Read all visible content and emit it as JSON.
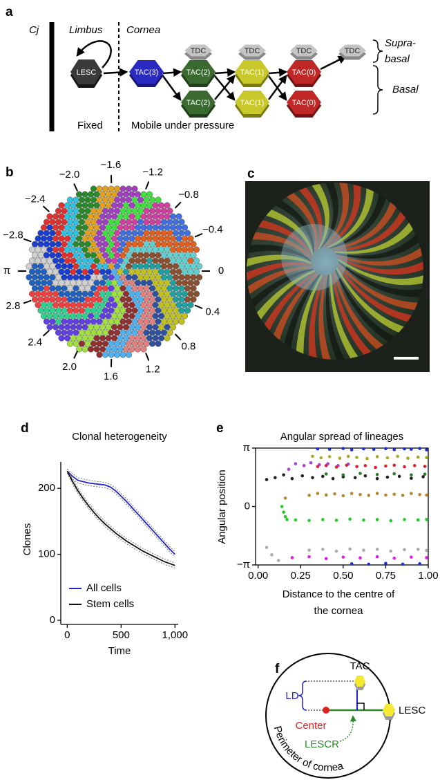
{
  "panel_labels": [
    "a",
    "b",
    "c",
    "d",
    "e",
    "f"
  ],
  "diagram_a": {
    "cj": "Cj",
    "limbus": "Limbus",
    "cornea": "Cornea",
    "lesc": "LESC",
    "tac": [
      "TAC(3)",
      "TAC(2)",
      "TAC(2)",
      "TAC(1)",
      "TAC(1)",
      "TAC(0)",
      "TAC(0)"
    ],
    "tdc": [
      "TDC",
      "TDC",
      "TDC",
      "TDC"
    ],
    "suprabasal": [
      "Supra-",
      "basal"
    ],
    "basal": "Basal",
    "fixed": "Fixed",
    "mobile": "Mobile under pressure"
  },
  "angle_plot_b": {
    "ticks": [
      {
        "value": -2.8,
        "label": "−2.8"
      },
      {
        "value": -2.4,
        "label": "−2.4"
      },
      {
        "value": -2.0,
        "label": "−2.0"
      },
      {
        "value": -1.6,
        "label": "−1.6"
      },
      {
        "value": -1.2,
        "label": "−1.2"
      },
      {
        "value": -0.8,
        "label": "−0.8"
      },
      {
        "value": -0.4,
        "label": "−0.4"
      },
      0,
      0.4,
      0.8,
      1.2,
      1.6,
      {
        "value": 2.0,
        "label": "2.0"
      },
      2.4,
      2.8,
      {
        "value": 3.14159,
        "label": "π"
      }
    ]
  },
  "chart_data": [
    {
      "type": "line",
      "title": "Clonal heterogeneity",
      "xlabel": "Time",
      "ylabel": "Clones",
      "x": [
        0,
        50,
        100,
        150,
        200,
        250,
        300,
        350,
        400,
        450,
        500,
        550,
        600,
        650,
        700,
        750,
        800,
        850,
        900,
        950,
        1000
      ],
      "xlim": [
        -60,
        1030
      ],
      "ylim": [
        0,
        240
      ],
      "xticks": [
        0,
        500,
        {
          "value": 1000,
          "label": "1,000"
        }
      ],
      "yticks": [
        0,
        100,
        200
      ],
      "legend": "lower left",
      "series": [
        {
          "name": "All cells",
          "color": "#2222cc",
          "values": [
            226,
            218,
            212,
            210,
            208,
            207,
            206,
            205,
            202,
            196,
            188,
            180,
            171,
            162,
            153,
            144,
            135,
            126,
            117,
            108,
            100
          ],
          "lower": [
            223,
            214,
            208,
            206,
            204,
            203,
            202,
            201,
            198,
            192,
            184,
            176,
            167,
            158,
            149,
            140,
            131,
            122,
            113,
            104,
            96
          ],
          "upper": [
            229,
            222,
            216,
            214,
            212,
            211,
            210,
            209,
            206,
            200,
            192,
            184,
            175,
            166,
            157,
            148,
            139,
            130,
            121,
            112,
            104
          ]
        },
        {
          "name": "Stem cells",
          "color": "#111111",
          "values": [
            226,
            210,
            196,
            184,
            173,
            163,
            154,
            146,
            139,
            132,
            126,
            120,
            115,
            110,
            105,
            101,
            97,
            93,
            89,
            86,
            83
          ],
          "lower": [
            223,
            206,
            192,
            180,
            169,
            159,
            150,
            142,
            135,
            128,
            122,
            116,
            111,
            106,
            101,
            97,
            93,
            89,
            85,
            82,
            79
          ],
          "upper": [
            229,
            214,
            200,
            188,
            177,
            167,
            158,
            150,
            143,
            136,
            130,
            124,
            119,
            114,
            109,
            105,
            101,
            97,
            93,
            90,
            87
          ]
        }
      ]
    },
    {
      "type": "scatter",
      "title": "Angular spread of lineages",
      "xlabel": [
        "Distance to the centre of",
        "the cornea"
      ],
      "ylabel": "Angular position",
      "xlim": [
        -0.015,
        1.0
      ],
      "ylim": [
        -3.14159,
        3.14159
      ],
      "xticks": [
        {
          "value": 0,
          "label": "0.00"
        },
        0.25,
        {
          "value": 0.5,
          "label": "0.50"
        },
        0.75,
        {
          "value": 1,
          "label": "1.00"
        }
      ],
      "yticks": [
        {
          "value": -3.14159,
          "label": "−π"
        },
        0,
        {
          "value": 3.14159,
          "label": "π"
        }
      ],
      "series": [
        {
          "color": "#1a2fd8",
          "x": [
            0.35,
            0.42,
            0.5,
            0.55,
            0.62,
            0.68,
            0.75,
            0.8,
            0.86,
            0.9,
            0.95,
            0.99
          ],
          "y": [
            3.1,
            3.08,
            3.12,
            3.05,
            3.1,
            3.07,
            3.11,
            3.06,
            3.1,
            3.08,
            3.12,
            3.05
          ]
        },
        {
          "color": "#a8a82a",
          "x": [
            0.32,
            0.37,
            0.42,
            0.48,
            0.53,
            0.58,
            0.64,
            0.7,
            0.76,
            0.82,
            0.88,
            0.94,
            0.99
          ],
          "y": [
            2.7,
            2.62,
            2.68,
            2.6,
            2.7,
            2.64,
            2.58,
            2.68,
            2.62,
            2.7,
            2.6,
            2.66,
            2.63
          ]
        },
        {
          "color": "#b040d0",
          "x": [
            0.18,
            0.22,
            0.27,
            0.31,
            0.36,
            0.41,
            0.47,
            0.53
          ],
          "y": [
            2.0,
            2.3,
            2.2,
            2.35,
            2.25,
            2.3,
            2.2,
            2.28
          ]
        },
        {
          "color": "#e02030",
          "x": [
            0.35,
            0.4,
            0.46,
            0.52,
            0.58,
            0.63,
            0.69,
            0.75,
            0.8,
            0.86,
            0.92,
            0.98
          ],
          "y": [
            2.15,
            2.2,
            2.12,
            2.22,
            2.15,
            2.2,
            2.1,
            2.18,
            2.22,
            2.14,
            2.2,
            2.16
          ]
        },
        {
          "color": "#202020",
          "x": [
            0.05,
            0.1,
            0.15,
            0.2,
            0.26,
            0.32,
            0.38,
            0.44,
            0.5,
            0.57,
            0.63,
            0.7,
            0.76,
            0.83,
            0.9,
            0.97
          ],
          "y": [
            1.45,
            1.55,
            1.7,
            1.5,
            1.65,
            1.55,
            1.62,
            1.5,
            1.6,
            1.55,
            1.65,
            1.5,
            1.58,
            1.62,
            1.52,
            1.6
          ]
        },
        {
          "color": "#2f7a2f",
          "x": [
            0.4,
            0.5,
            0.6,
            0.7,
            0.8,
            0.9,
            0.98
          ],
          "y": [
            1.75,
            1.7,
            1.78,
            1.72,
            1.76,
            1.7,
            1.74
          ]
        },
        {
          "color": "#b8862e",
          "x": [
            0.16,
            0.3,
            0.35,
            0.4,
            0.45,
            0.5,
            0.55,
            0.6,
            0.65,
            0.7,
            0.75,
            0.8,
            0.85,
            0.9,
            0.95,
            0.99
          ],
          "y": [
            0.45,
            0.6,
            0.7,
            0.62,
            0.68,
            0.58,
            0.7,
            0.64,
            0.6,
            0.7,
            0.62,
            0.66,
            0.6,
            0.7,
            0.64,
            0.62
          ]
        },
        {
          "color": "#22cc22",
          "x": [
            0.14,
            0.15,
            0.16,
            0.17,
            0.22,
            0.3,
            0.38,
            0.46,
            0.54,
            0.62,
            0.7,
            0.78,
            0.86,
            0.94,
            0.99
          ],
          "y": [
            0.0,
            -0.3,
            -0.55,
            -0.7,
            -0.72,
            -0.75,
            -0.7,
            -0.74,
            -0.68,
            -0.73,
            -0.7,
            -0.76,
            -0.7,
            -0.72,
            -0.7
          ]
        },
        {
          "color": "#aaaaaa",
          "x": [
            0.05,
            0.08,
            0.12,
            0.3,
            0.38,
            0.46,
            0.54,
            0.62,
            0.7,
            0.78,
            0.86,
            0.94,
            0.99
          ],
          "y": [
            -2.2,
            -2.6,
            -2.9,
            -2.35,
            -2.3,
            -2.4,
            -2.28,
            -2.35,
            -2.3,
            -2.4,
            -2.32,
            -2.3,
            -2.36
          ]
        },
        {
          "color": "#e020e0",
          "x": [
            0.2,
            0.3,
            0.4,
            0.5,
            0.6,
            0.7,
            0.8,
            0.9,
            0.99
          ],
          "y": [
            -2.75,
            -2.7,
            -2.8,
            -2.72,
            -2.76,
            -2.7,
            -2.78,
            -2.72,
            -2.75
          ]
        },
        {
          "color": "#1a2fd8",
          "x": [
            0.55,
            0.65,
            0.75,
            0.85,
            0.95
          ],
          "y": [
            -3.08,
            -3.1,
            -3.06,
            -3.1,
            -3.08
          ]
        }
      ]
    }
  ],
  "diagram_f": {
    "tac": "TAC",
    "ld": "LD",
    "lesc": "LESC",
    "center": "Center",
    "lescr": "LESCR",
    "perimeter": "Perimeter of cornea"
  }
}
